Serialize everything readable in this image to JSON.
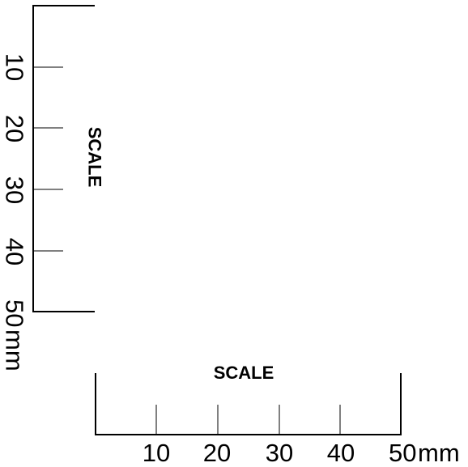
{
  "vertical_scale": {
    "title": "SCALE",
    "ticks": [
      "10",
      "20",
      "30",
      "40",
      "50"
    ],
    "unit": "mm"
  },
  "horizontal_scale": {
    "title": "SCALE",
    "ticks": [
      "10",
      "20",
      "30",
      "40",
      "50"
    ],
    "unit": "mm"
  },
  "colors": {
    "ink": "#000000",
    "background": "#ffffff"
  }
}
